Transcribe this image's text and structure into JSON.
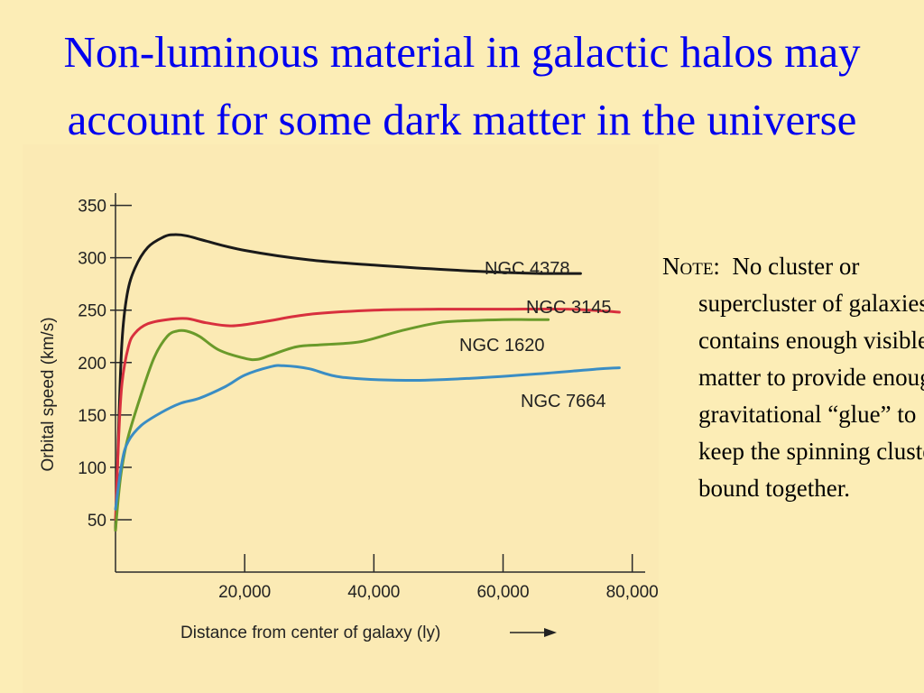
{
  "slide": {
    "title": "Non-luminous material in galactic halos may account for some dark matter in the universe",
    "note": {
      "label": "Note:",
      "text": "No cluster or supercluster of galaxies contains enough visible matter to provide enough gravitational “glue” to keep the spinning clusters bound together."
    }
  },
  "colors": {
    "background": "#fcedb6",
    "title": "#0000ee",
    "axis": "#2a2a2a"
  },
  "chart_data": {
    "type": "line",
    "title": "",
    "xlabel": "Distance from center of galaxy (ly)",
    "ylabel": "Orbital speed (km/s)",
    "x_ticks": [
      20000,
      40000,
      60000,
      80000
    ],
    "x_tick_labels": [
      "20,000",
      "40,000",
      "60,000",
      "80,000"
    ],
    "y_ticks": [
      50,
      100,
      150,
      200,
      250,
      300,
      350
    ],
    "xlim": [
      0,
      82000
    ],
    "ylim": [
      0,
      360
    ],
    "grid": false,
    "legend": "labels placed at line ends",
    "series": [
      {
        "name": "NGC 4378",
        "color": "#1a1a1a",
        "x": [
          0,
          500,
          1000,
          1800,
          3000,
          5000,
          7500,
          9000,
          11000,
          14000,
          20000,
          30000,
          40000,
          50000,
          60000,
          66000,
          72000
        ],
        "y": [
          40,
          140,
          220,
          265,
          290,
          310,
          320,
          322,
          321,
          316,
          307,
          298,
          293,
          289,
          286,
          285,
          285
        ]
      },
      {
        "name": "NGC 3145",
        "color": "#d8303e",
        "x": [
          0,
          500,
          1000,
          2000,
          3000,
          5000,
          8000,
          11000,
          14000,
          18000,
          23000,
          30000,
          40000,
          50000,
          60000,
          70000,
          76000,
          78000
        ],
        "y": [
          50,
          130,
          180,
          215,
          228,
          237,
          241,
          242,
          238,
          235,
          239,
          246,
          250,
          251,
          251,
          251,
          249,
          248
        ]
      },
      {
        "name": "NGC 1620",
        "color": "#6a9a2a",
        "x": [
          0,
          500,
          1000,
          2000,
          4000,
          6000,
          8000,
          9500,
          11000,
          13000,
          16000,
          20000,
          22000,
          24000,
          28000,
          32000,
          38000,
          44000,
          50000,
          55000,
          60000,
          64000,
          67000
        ],
        "y": [
          40,
          75,
          100,
          130,
          170,
          205,
          225,
          230,
          230,
          225,
          212,
          204,
          203,
          207,
          215,
          217,
          220,
          230,
          238,
          240,
          241,
          241,
          241
        ]
      },
      {
        "name": "NGC 7664",
        "color": "#3a8dc4",
        "x": [
          0,
          1000,
          2000,
          4000,
          7000,
          10000,
          13000,
          17000,
          20000,
          24000,
          26000,
          30000,
          35000,
          45000,
          55000,
          65000,
          75000,
          78000
        ],
        "y": [
          60,
          105,
          125,
          140,
          152,
          161,
          166,
          177,
          188,
          196,
          197,
          194,
          186,
          183,
          185,
          189,
          194,
          195
        ]
      }
    ]
  }
}
